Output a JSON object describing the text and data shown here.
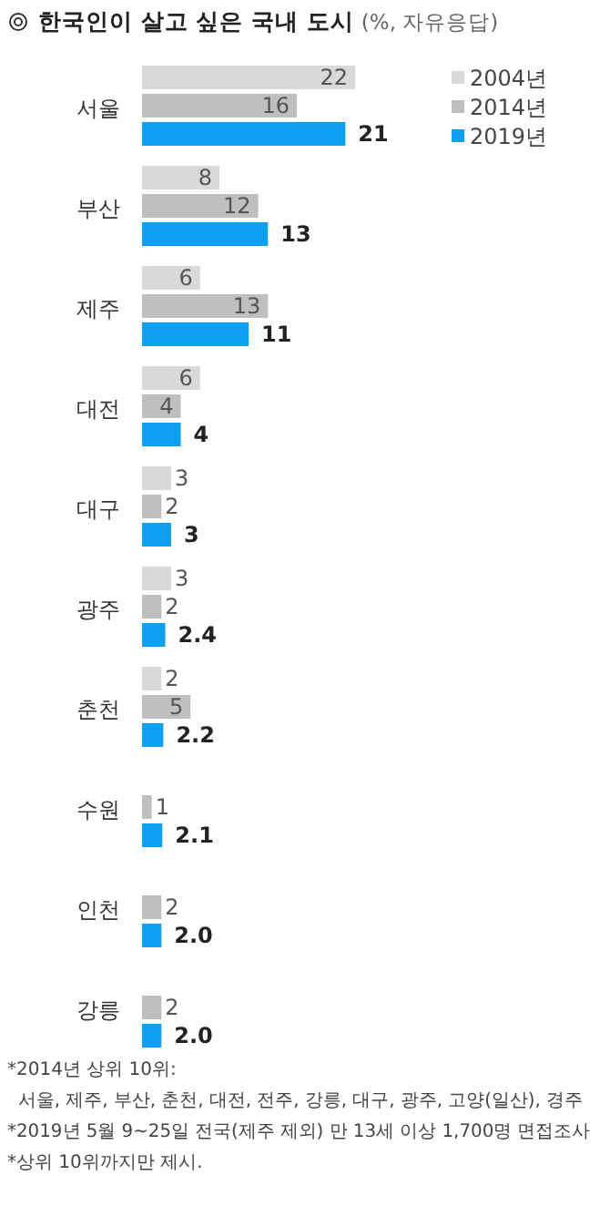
{
  "chart_data": {
    "type": "bar",
    "orientation": "horizontal",
    "title": "한국인이 살고 싶은 국내 도시",
    "subtitle": "(%, 자유응답)",
    "categories": [
      "서울",
      "부산",
      "제주",
      "대전",
      "대구",
      "광주",
      "춘천",
      "수원",
      "인천",
      "강릉"
    ],
    "series": [
      {
        "name": "2004년",
        "color": "#d9d9d9",
        "values": [
          22,
          8,
          6,
          6,
          3,
          3,
          2,
          null,
          null,
          null
        ],
        "value_labels": [
          "22",
          "8",
          "6",
          "6",
          "3",
          "3",
          "2",
          null,
          null,
          null
        ]
      },
      {
        "name": "2014년",
        "color": "#bfbfbf",
        "values": [
          16,
          12,
          13,
          4,
          2,
          2,
          5,
          1,
          2,
          2
        ],
        "value_labels": [
          "16",
          "12",
          "13",
          "4",
          "2",
          "2",
          "5",
          "1",
          "2",
          "2"
        ]
      },
      {
        "name": "2019년",
        "color": "#0d9ff0",
        "values": [
          21,
          13,
          11,
          4,
          3,
          2.4,
          2.2,
          2.1,
          2.0,
          2.0
        ],
        "value_labels": [
          "21",
          "13",
          "11",
          "4",
          "3",
          "2.4",
          "2.2",
          "2.1",
          "2.0",
          "2.0"
        ]
      }
    ],
    "legend": "top right",
    "annotations": [
      "*2014년 상위 10위:",
      "서울, 제주, 부산, 춘천, 대전, 전주, 강릉, 대구, 광주, 고양(일산), 경주",
      "*2019년 5월 9~25일 전국(제주 제외) 만 13세 이상 1,700명 면접조사",
      "*상위 10위까지만 제시."
    ]
  }
}
